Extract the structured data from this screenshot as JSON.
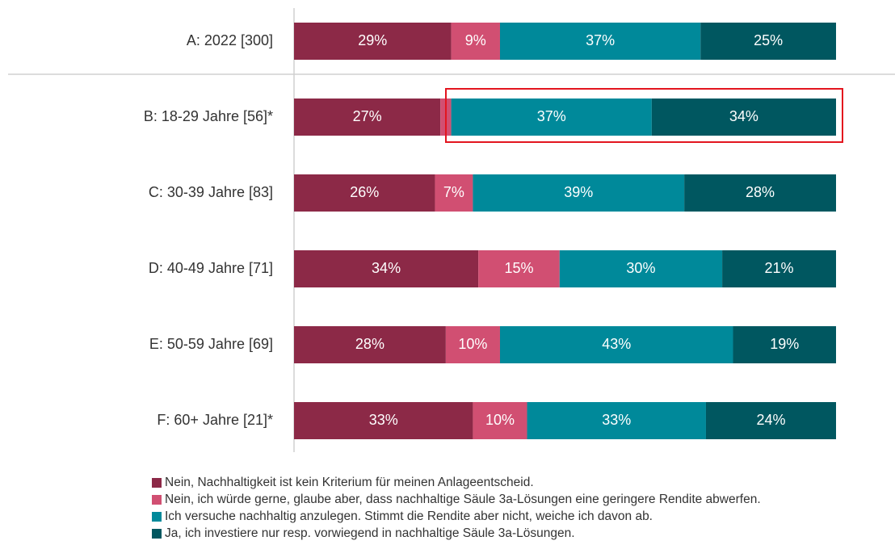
{
  "chart_data": {
    "type": "stacked_barh",
    "categories": [
      "A: 2022 [300]",
      "B: 18-29 Jahre [56]*",
      "C: 30-39 Jahre [83]",
      "D: 40-49 Jahre [71]",
      "E: 50-59 Jahre [69]",
      "F: 60+ Jahre [21]*"
    ],
    "xlim": [
      0,
      100
    ],
    "series": [
      {
        "name": "Nein, Nachhaltigkeit ist kein Kriterium für meinen Anlageentscheid.",
        "color": "#8c2947",
        "values": [
          29,
          27,
          26,
          34,
          28,
          33
        ],
        "value_labels": [
          "29%",
          "27%",
          "26%",
          "34%",
          "28%",
          "33%"
        ]
      },
      {
        "name": "Nein, ich würde gerne, glaube aber, dass nachhaltige Säule 3a-Lösungen eine geringere Rendite abwerfen.",
        "color": "#d14f72",
        "values": [
          9,
          2,
          7,
          15,
          10,
          10
        ],
        "value_labels": [
          "9%",
          null,
          "7%",
          "15%",
          "10%",
          "10%"
        ]
      },
      {
        "name": "Ich versuche nachhaltig anzulegen. Stimmt die Rendite aber nicht, weiche ich davon ab.",
        "color": "#00899a",
        "values": [
          37,
          37,
          39,
          30,
          43,
          33
        ],
        "value_labels": [
          "37%",
          "37%",
          "39%",
          "30%",
          "43%",
          "33%"
        ]
      },
      {
        "name": "Ja, ich investiere nur resp. vorwiegend in nachhaltige Säule 3a-Lösungen.",
        "color": "#005760",
        "values": [
          25,
          34,
          28,
          21,
          19,
          24
        ],
        "value_labels": [
          "25%",
          "34%",
          "28%",
          "21%",
          "19%",
          "24%"
        ]
      }
    ]
  }
}
